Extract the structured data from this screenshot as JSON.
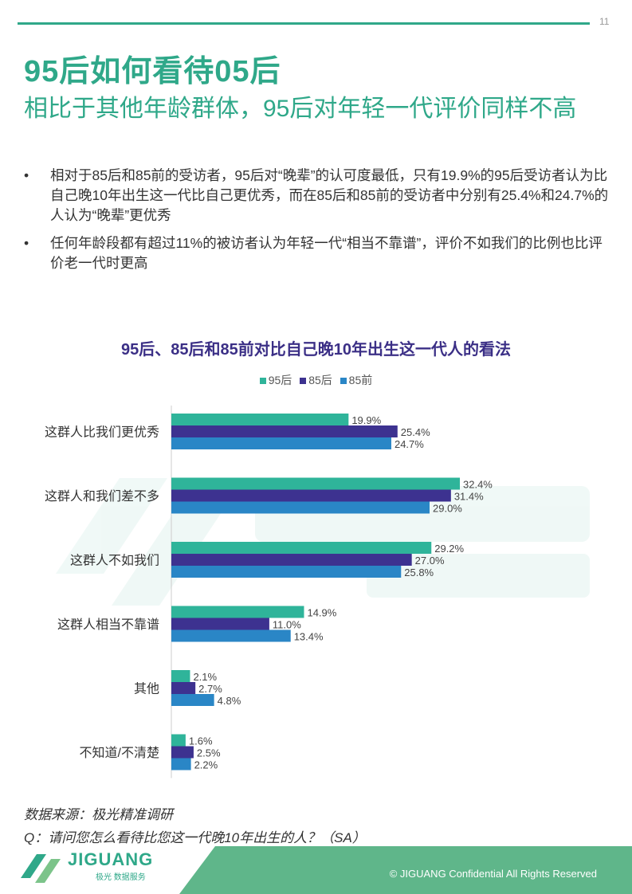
{
  "page": {
    "number": "11",
    "title": "95后如何看待05后",
    "subtitle": "相比于其他年龄群体，95后对年轻一代评价同样不高"
  },
  "bullets": [
    "相对于85后和85前的受访者，95后对“晚辈”的认可度最低，只有19.9%的95后受访者认为比自己晚10年出生这一代比自己更优秀，而在85后和85前的受访者中分别有25.4%和24.7%的人认为“晚辈”更优秀",
    "任何年龄段都有超过11%的被访者认为年轻一代“相当不靠谱”，评价不如我们的比例也比评价老一代时更高"
  ],
  "bullet_symbol": "•",
  "chart_data": {
    "type": "bar",
    "orientation": "horizontal",
    "title": "95后、85后和85前对比自己晚10年出生这一代人的看法",
    "categories": [
      "这群人比我们更优秀",
      "这群人和我们差不多",
      "这群人不如我们",
      "这群人相当不靠谱",
      "其他",
      "不知道/不清楚"
    ],
    "series": [
      {
        "name": "95后",
        "color": "#2fb49a",
        "values": [
          19.9,
          32.4,
          29.2,
          14.9,
          2.1,
          1.6
        ]
      },
      {
        "name": "85后",
        "color": "#3d3290",
        "values": [
          25.4,
          31.4,
          27.0,
          11.0,
          2.7,
          2.5
        ]
      },
      {
        "name": "85前",
        "color": "#2a86c6",
        "values": [
          24.7,
          29.0,
          25.8,
          13.4,
          4.8,
          2.2
        ]
      }
    ],
    "value_suffix": "%",
    "legend_position": "top",
    "grid": false,
    "xlim": [
      0,
      35
    ]
  },
  "notes": {
    "source": "数据来源：极光精准调研",
    "question": "Q：请问您怎么看待比您这一代晚10年出生的人？（SA）"
  },
  "footer": {
    "logo": "JIGUANG",
    "logo_sub": "极光 数据服务",
    "copyright": "© JIGUANG  Confidential  All Rights Reserved"
  },
  "colors": {
    "accent": "#2fa889",
    "chart_title": "#3b2f86",
    "footer_green": "#5fb68a"
  }
}
